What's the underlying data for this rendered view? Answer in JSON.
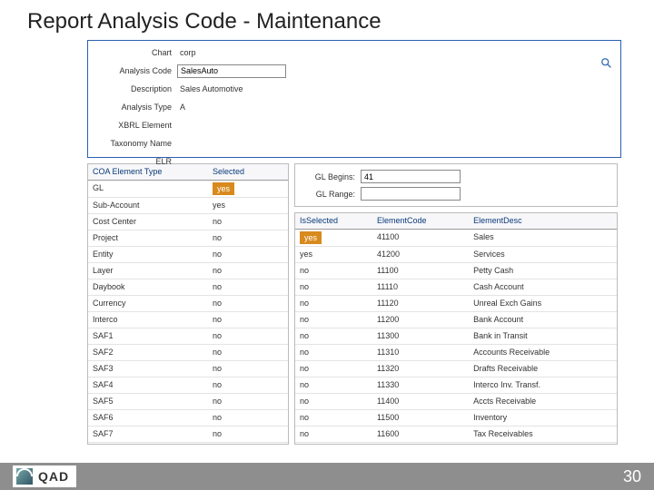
{
  "title": "Report Analysis Code - Maintenance",
  "header": {
    "chart_label": "Chart",
    "chart_value": "corp",
    "code_label": "Analysis Code",
    "code_value": "SalesAuto",
    "desc_label": "Description",
    "desc_value": "Sales Automotive",
    "type_label": "Analysis Type",
    "type_value": "A",
    "xbrl_label": "XBRL Element",
    "xbrl_value": "",
    "tax_label": "Taxonomy Name",
    "tax_value": "",
    "elr_label": "ELR",
    "elr_value": ""
  },
  "coa": {
    "col_type": "COA Element Type",
    "col_sel": "Selected",
    "rows": [
      {
        "t": "GL",
        "s": "yes",
        "hi": true
      },
      {
        "t": "Sub-Account",
        "s": "yes"
      },
      {
        "t": "Cost Center",
        "s": "no"
      },
      {
        "t": "Project",
        "s": "no"
      },
      {
        "t": "Entity",
        "s": "no"
      },
      {
        "t": "Layer",
        "s": "no"
      },
      {
        "t": "Daybook",
        "s": "no"
      },
      {
        "t": "Currency",
        "s": "no"
      },
      {
        "t": "Interco",
        "s": "no"
      },
      {
        "t": "SAF1",
        "s": "no"
      },
      {
        "t": "SAF2",
        "s": "no"
      },
      {
        "t": "SAF3",
        "s": "no"
      },
      {
        "t": "SAF4",
        "s": "no"
      },
      {
        "t": "SAF5",
        "s": "no"
      },
      {
        "t": "SAF6",
        "s": "no"
      },
      {
        "t": "SAF7",
        "s": "no"
      }
    ]
  },
  "filter": {
    "begins_label": "GL Begins:",
    "begins_value": "41",
    "range_label": "GL Range:",
    "range_value": ""
  },
  "elements": {
    "col_sel": "IsSelected",
    "col_code": "ElementCode",
    "col_desc": "ElementDesc",
    "rows": [
      {
        "s": "yes",
        "c": "41100",
        "d": "Sales",
        "hi": true
      },
      {
        "s": "yes",
        "c": "41200",
        "d": "Services"
      },
      {
        "s": "no",
        "c": "11100",
        "d": "Petty Cash"
      },
      {
        "s": "no",
        "c": "11110",
        "d": "Cash Account"
      },
      {
        "s": "no",
        "c": "11120",
        "d": "Unreal Exch Gains"
      },
      {
        "s": "no",
        "c": "11200",
        "d": "Bank Account"
      },
      {
        "s": "no",
        "c": "11300",
        "d": "Bank in Transit"
      },
      {
        "s": "no",
        "c": "11310",
        "d": "Accounts Receivable"
      },
      {
        "s": "no",
        "c": "11320",
        "d": "Drafts Receivable"
      },
      {
        "s": "no",
        "c": "11330",
        "d": "Interco Inv. Transf."
      },
      {
        "s": "no",
        "c": "11400",
        "d": "Accts Receivable"
      },
      {
        "s": "no",
        "c": "11500",
        "d": "Inventory"
      },
      {
        "s": "no",
        "c": "11600",
        "d": "Tax Receivables"
      }
    ]
  },
  "footer": {
    "brand": "QAD",
    "page": "30"
  },
  "colors": {
    "panel_border": "#2a5fb0",
    "highlight": "#d88a1e"
  }
}
